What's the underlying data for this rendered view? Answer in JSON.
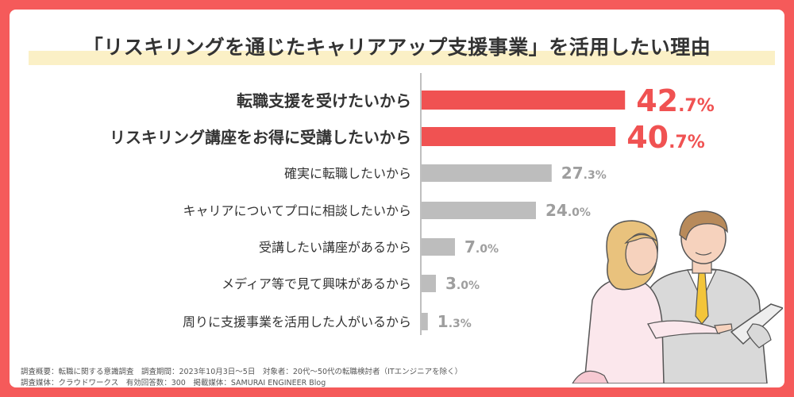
{
  "title": "「リスキリングを通じたキャリアアップ支援事業」を活用したい理由",
  "chart_data": {
    "type": "bar",
    "orientation": "horizontal",
    "title": "「リスキリングを通じたキャリアアップ支援事業」を活用したい理由",
    "categories": [
      "転職支援を受けたいから",
      "リスキリング講座をお得に受講したいから",
      "確実に転職したいから",
      "キャリアについてプロに相談したいから",
      "受講したい講座があるから",
      "メディア等で見て興味があるから",
      "周りに支援事業を活用した人がいるから"
    ],
    "values": [
      42.7,
      40.7,
      27.3,
      24.0,
      7.0,
      3.0,
      1.3
    ],
    "value_labels": [
      {
        "int": "42",
        "dec": ".7%"
      },
      {
        "int": "40",
        "dec": ".7%"
      },
      {
        "int": "27",
        "dec": ".3%"
      },
      {
        "int": "24",
        "dec": ".0%"
      },
      {
        "int": "7",
        "dec": ".0%"
      },
      {
        "int": "3",
        "dec": ".0%"
      },
      {
        "int": "1",
        "dec": ".3%"
      }
    ],
    "highlight_count": 2,
    "xlim": [
      0,
      50
    ],
    "xlabel": "",
    "ylabel": "",
    "colors": {
      "highlight": "#f05252",
      "normal": "#bdbdbd",
      "axis": "#aaaaaa"
    }
  },
  "footnotes": [
    "調査概要：転職に関する意識調査　調査期間：2023年10月3日〜5日　対象者：20代〜50代の転職検討者（ITエンジニアを除く）",
    "調査媒体：クラウドワークス　有効回答数：300　掲載媒体：SAMURAI ENGINEER Blog"
  ],
  "colors": {
    "frame": "#f55a5a",
    "title_band": "#fbf0c6",
    "text": "#333333"
  }
}
